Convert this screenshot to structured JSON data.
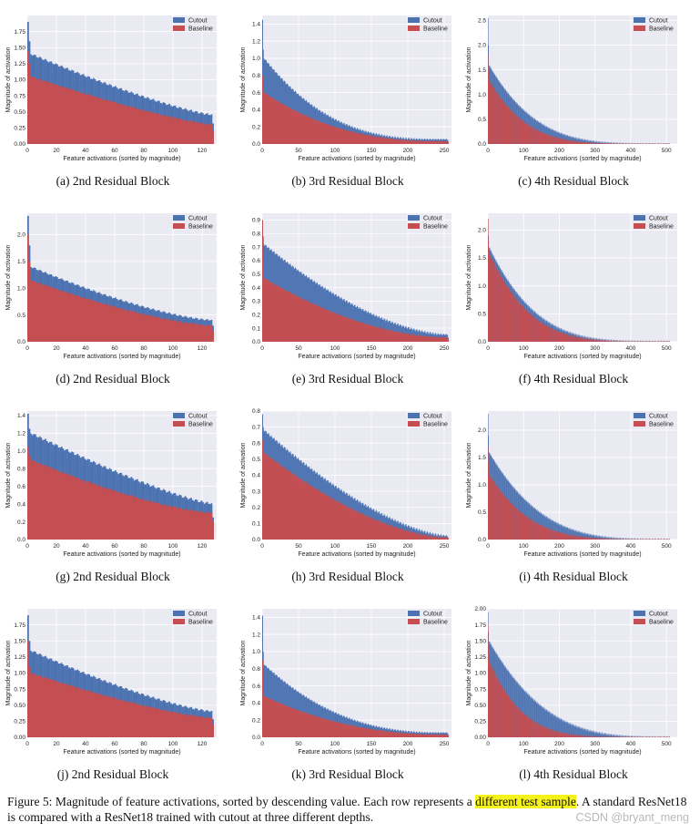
{
  "legend": {
    "cutout": "Cutout",
    "baseline": "Baseline"
  },
  "xlabel": "Feature activations (sorted by magnitude)",
  "ylabel": "Magnitude of activation",
  "colors": {
    "cutout": "#4c72b0",
    "baseline": "#c44e52",
    "plot_bg": "#eaeaf2",
    "grid": "#ffffff"
  },
  "chart_data": [
    {
      "id": "a",
      "type": "bar",
      "caption": "(a) 2nd Residual Block",
      "n": 128,
      "xticks": [
        0,
        20,
        40,
        60,
        80,
        100,
        120
      ],
      "xlim": [
        0,
        130
      ],
      "ylim": [
        0,
        2.0
      ],
      "yticks": [
        "0.00",
        "0.25",
        "0.50",
        "0.75",
        "1.00",
        "1.25",
        "1.50",
        "1.75"
      ],
      "yvals": [
        0,
        0.25,
        0.5,
        0.75,
        1.0,
        1.25,
        1.5,
        1.75
      ],
      "cutout": {
        "first": 1.9,
        "second": 1.6,
        "start": 1.4,
        "end": 0.45,
        "last": 0.32,
        "power": 0.8
      },
      "baseline": {
        "first": 1.45,
        "second": 1.25,
        "start": 1.05,
        "end": 0.3,
        "last": 0.2,
        "power": 0.8
      }
    },
    {
      "id": "b",
      "type": "bar",
      "caption": "(b) 3rd Residual Block",
      "n": 256,
      "xticks": [
        0,
        50,
        100,
        150,
        200,
        250
      ],
      "xlim": [
        0,
        260
      ],
      "ylim": [
        0,
        1.5
      ],
      "yticks": [
        "0.0",
        "0.2",
        "0.4",
        "0.6",
        "0.8",
        "1.0",
        "1.2",
        "1.4"
      ],
      "yvals": [
        0,
        0.2,
        0.4,
        0.6,
        0.8,
        1.0,
        1.2,
        1.4
      ],
      "cutout": {
        "first": 1.45,
        "second": 1.1,
        "start": 1.0,
        "end": 0.05,
        "last": 0.03,
        "power": 0.35
      },
      "baseline": {
        "first": 0.8,
        "second": 0.65,
        "start": 0.6,
        "end": 0.03,
        "last": 0.02,
        "power": 0.4
      }
    },
    {
      "id": "c",
      "type": "bar",
      "caption": "(c) 4th Residual Block",
      "n": 512,
      "xticks": [
        0,
        100,
        200,
        300,
        400,
        500
      ],
      "xlim": [
        0,
        530
      ],
      "ylim": [
        0,
        2.6
      ],
      "yticks": [
        "0.0",
        "0.5",
        "1.0",
        "1.5",
        "2.0",
        "2.5"
      ],
      "yvals": [
        0,
        0.5,
        1.0,
        1.5,
        2.0,
        2.5
      ],
      "cutout": {
        "first": 2.55,
        "second": 2.0,
        "start": 1.6,
        "end": 0.0,
        "last": 0.0,
        "power": 0.25
      },
      "baseline": {
        "first": 1.8,
        "second": 1.5,
        "start": 1.3,
        "end": 0.0,
        "last": 0.0,
        "power": 0.2
      }
    },
    {
      "id": "d",
      "type": "bar",
      "caption": "(d) 2nd Residual Block",
      "n": 128,
      "xticks": [
        0,
        20,
        40,
        60,
        80,
        100,
        120
      ],
      "xlim": [
        0,
        130
      ],
      "ylim": [
        0,
        2.4
      ],
      "yticks": [
        "0.0",
        "0.5",
        "1.0",
        "1.5",
        "2.0"
      ],
      "yvals": [
        0,
        0.5,
        1.0,
        1.5,
        2.0
      ],
      "cutout": {
        "first": 2.35,
        "second": 1.8,
        "start": 1.4,
        "end": 0.4,
        "last": 0.3,
        "power": 0.7
      },
      "baseline": {
        "first": 2.0,
        "second": 1.5,
        "start": 1.15,
        "end": 0.3,
        "last": 0.2,
        "power": 0.7
      }
    },
    {
      "id": "e",
      "type": "bar",
      "caption": "(e) 3rd Residual Block",
      "n": 256,
      "xticks": [
        0,
        50,
        100,
        150,
        200,
        250
      ],
      "xlim": [
        0,
        260
      ],
      "ylim": [
        0,
        0.95
      ],
      "yticks": [
        "0.0",
        "0.1",
        "0.2",
        "0.3",
        "0.4",
        "0.5",
        "0.6",
        "0.7",
        "0.8",
        "0.9"
      ],
      "yvals": [
        0,
        0.1,
        0.2,
        0.3,
        0.4,
        0.5,
        0.6,
        0.7,
        0.8,
        0.9
      ],
      "cutout": {
        "first": 0.9,
        "second": 0.78,
        "start": 0.72,
        "end": 0.05,
        "last": 0.03,
        "power": 0.6
      },
      "baseline": {
        "first": 0.9,
        "second": 0.55,
        "start": 0.47,
        "end": 0.03,
        "last": 0.02,
        "power": 0.55
      }
    },
    {
      "id": "f",
      "type": "bar",
      "caption": "(f) 4th Residual Block",
      "n": 512,
      "xticks": [
        0,
        100,
        200,
        300,
        400,
        500
      ],
      "xlim": [
        0,
        530
      ],
      "ylim": [
        0,
        2.3
      ],
      "yticks": [
        "0.0",
        "0.5",
        "1.0",
        "1.5",
        "2.0"
      ],
      "yvals": [
        0,
        0.5,
        1.0,
        1.5,
        2.0
      ],
      "cutout": {
        "first": 2.2,
        "second": 1.9,
        "start": 1.7,
        "end": 0.0,
        "last": 0.0,
        "power": 0.25
      },
      "baseline": {
        "first": 2.2,
        "second": 1.8,
        "start": 1.6,
        "end": 0.0,
        "last": 0.0,
        "power": 0.22
      }
    },
    {
      "id": "g",
      "type": "bar",
      "caption": "(g) 2nd Residual Block",
      "n": 128,
      "xticks": [
        0,
        20,
        40,
        60,
        80,
        100,
        120
      ],
      "xlim": [
        0,
        130
      ],
      "ylim": [
        0,
        1.45
      ],
      "yticks": [
        "0.0",
        "0.2",
        "0.4",
        "0.6",
        "0.8",
        "1.0",
        "1.2",
        "1.4"
      ],
      "yvals": [
        0,
        0.2,
        0.4,
        0.6,
        0.8,
        1.0,
        1.2,
        1.4
      ],
      "cutout": {
        "first": 1.42,
        "second": 1.25,
        "start": 1.2,
        "end": 0.4,
        "last": 0.25,
        "power": 0.8
      },
      "baseline": {
        "first": 1.05,
        "second": 0.95,
        "start": 0.9,
        "end": 0.3,
        "last": 0.2,
        "power": 0.7
      }
    },
    {
      "id": "h",
      "type": "bar",
      "caption": "(h) 3rd Residual Block",
      "n": 256,
      "xticks": [
        0,
        50,
        100,
        150,
        200,
        250
      ],
      "xlim": [
        0,
        260
      ],
      "ylim": [
        0,
        0.8
      ],
      "yticks": [
        "0.0",
        "0.1",
        "0.2",
        "0.3",
        "0.4",
        "0.5",
        "0.6",
        "0.7",
        "0.8"
      ],
      "yvals": [
        0,
        0.1,
        0.2,
        0.3,
        0.4,
        0.5,
        0.6,
        0.7,
        0.8
      ],
      "cutout": {
        "first": 0.78,
        "second": 0.7,
        "start": 0.68,
        "end": 0.02,
        "last": 0.01,
        "power": 0.65
      },
      "baseline": {
        "first": 0.62,
        "second": 0.56,
        "start": 0.54,
        "end": 0.01,
        "last": 0.01,
        "power": 0.6
      }
    },
    {
      "id": "i",
      "type": "bar",
      "caption": "(i) 4th Residual Block",
      "n": 512,
      "xticks": [
        0,
        100,
        200,
        300,
        400,
        500
      ],
      "xlim": [
        0,
        530
      ],
      "ylim": [
        0,
        2.35
      ],
      "yticks": [
        "0.0",
        "0.5",
        "1.0",
        "1.5",
        "2.0"
      ],
      "yvals": [
        0,
        0.5,
        1.0,
        1.5,
        2.0
      ],
      "cutout": {
        "first": 2.3,
        "second": 1.9,
        "start": 1.6,
        "end": 0.0,
        "last": 0.0,
        "power": 0.28
      },
      "baseline": {
        "first": 1.7,
        "second": 1.4,
        "start": 1.2,
        "end": 0.0,
        "last": 0.0,
        "power": 0.22
      }
    },
    {
      "id": "j",
      "type": "bar",
      "caption": "(j) 2nd Residual Block",
      "n": 128,
      "xticks": [
        0,
        20,
        40,
        60,
        80,
        100,
        120
      ],
      "xlim": [
        0,
        130
      ],
      "ylim": [
        0,
        2.0
      ],
      "yticks": [
        "0.00",
        "0.25",
        "0.50",
        "0.75",
        "1.00",
        "1.25",
        "1.50",
        "1.75"
      ],
      "yvals": [
        0,
        0.25,
        0.5,
        0.75,
        1.0,
        1.25,
        1.5,
        1.75
      ],
      "cutout": {
        "first": 1.9,
        "second": 1.5,
        "start": 1.35,
        "end": 0.4,
        "last": 0.28,
        "power": 0.75
      },
      "baseline": {
        "first": 1.5,
        "second": 1.1,
        "start": 1.0,
        "end": 0.3,
        "last": 0.2,
        "power": 0.75
      }
    },
    {
      "id": "k",
      "type": "bar",
      "caption": "(k) 3rd Residual Block",
      "n": 256,
      "xticks": [
        0,
        50,
        100,
        150,
        200,
        250
      ],
      "xlim": [
        0,
        260
      ],
      "ylim": [
        0,
        1.5
      ],
      "yticks": [
        "0.0",
        "0.2",
        "0.4",
        "0.6",
        "0.8",
        "1.0",
        "1.2",
        "1.4"
      ],
      "yvals": [
        0,
        0.2,
        0.4,
        0.6,
        0.8,
        1.0,
        1.2,
        1.4
      ],
      "cutout": {
        "first": 1.42,
        "second": 1.0,
        "start": 0.85,
        "end": 0.05,
        "last": 0.03,
        "power": 0.4
      },
      "baseline": {
        "first": 0.9,
        "second": 0.55,
        "start": 0.48,
        "end": 0.03,
        "last": 0.02,
        "power": 0.45
      }
    },
    {
      "id": "l",
      "type": "bar",
      "caption": "(l) 4th Residual Block",
      "n": 512,
      "xticks": [
        0,
        100,
        200,
        300,
        400,
        500
      ],
      "xlim": [
        0,
        530
      ],
      "ylim": [
        0,
        2.0
      ],
      "yticks": [
        "0.00",
        "0.25",
        "0.50",
        "0.75",
        "1.00",
        "1.25",
        "1.50",
        "1.75",
        "2.00"
      ],
      "yvals": [
        0,
        0.25,
        0.5,
        0.75,
        1.0,
        1.25,
        1.5,
        1.75,
        2.0
      ],
      "cutout": {
        "first": 1.95,
        "second": 1.65,
        "start": 1.5,
        "end": 0.0,
        "last": 0.0,
        "power": 0.3
      },
      "baseline": {
        "first": 1.75,
        "second": 1.4,
        "start": 1.2,
        "end": 0.0,
        "last": 0.0,
        "power": 0.18
      }
    }
  ],
  "figure_caption": {
    "before": "Figure 5: Magnitude of feature activations, sorted by descending value.  Each row represents a ",
    "highlight": "different test sample",
    "after": ".  A standard ResNet18 is compared with a ResNet18 trained with cutout at three different depths."
  },
  "watermark": "CSDN @bryant_meng"
}
